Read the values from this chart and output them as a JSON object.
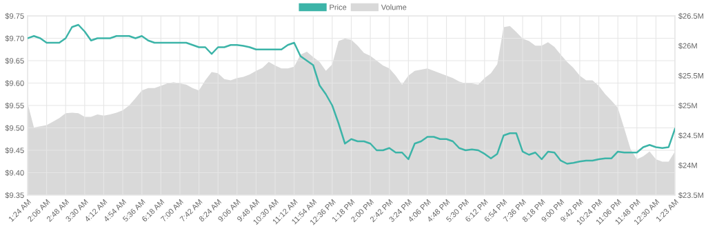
{
  "chart_data": {
    "type": "line",
    "categories": [
      "1:24 AM",
      null,
      null,
      "2:06 AM",
      null,
      null,
      "2:48 AM",
      null,
      null,
      "3:30 AM",
      null,
      null,
      "4:12 AM",
      null,
      null,
      "4:54 AM",
      null,
      null,
      "5:36 AM",
      null,
      null,
      "6:18 AM",
      null,
      null,
      "7:00 AM",
      null,
      null,
      "7:42 AM",
      null,
      null,
      "8:24 AM",
      null,
      null,
      "9:06 AM",
      null,
      null,
      "9:48 AM",
      null,
      null,
      "10:30 AM",
      null,
      null,
      "11:12 AM",
      null,
      null,
      "11:54 AM",
      null,
      null,
      "12:36 PM",
      null,
      null,
      "1:18 PM",
      null,
      null,
      "2:00 PM",
      null,
      null,
      "2:42 PM",
      null,
      null,
      "3:24 PM",
      null,
      null,
      "4:06 PM",
      null,
      null,
      "4:48 PM",
      null,
      null,
      "5:30 PM",
      null,
      null,
      "6:12 PM",
      null,
      null,
      "6:54 PM",
      null,
      null,
      "7:36 PM",
      null,
      null,
      "8:18 PM",
      null,
      null,
      "9:00 PM",
      null,
      null,
      "9:42 PM",
      null,
      null,
      "10:24 PM",
      null,
      null,
      "11:06 PM",
      null,
      null,
      "11:48 PM",
      null,
      null,
      "12:30 AM",
      null,
      null,
      "1:23 AM"
    ],
    "series": [
      {
        "name": "Price",
        "color": "#3cb4a8",
        "values": [
          9.7,
          9.705,
          9.7,
          9.69,
          9.69,
          9.69,
          9.7,
          9.725,
          9.73,
          9.715,
          9.695,
          9.7,
          9.7,
          9.7,
          9.705,
          9.705,
          9.705,
          9.7,
          9.705,
          9.695,
          9.69,
          9.69,
          9.69,
          9.69,
          9.69,
          9.69,
          9.685,
          9.68,
          9.68,
          9.665,
          9.68,
          9.68,
          9.685,
          9.685,
          9.683,
          9.68,
          9.675,
          9.675,
          9.675,
          9.675,
          9.675,
          9.685,
          9.69,
          9.66,
          9.65,
          9.64,
          9.595,
          9.575,
          9.55,
          9.51,
          9.465,
          9.475,
          9.47,
          9.47,
          9.465,
          9.45,
          9.45,
          9.455,
          9.445,
          9.445,
          9.43,
          9.465,
          9.47,
          9.48,
          9.48,
          9.475,
          9.475,
          9.47,
          9.455,
          9.45,
          9.452,
          9.45,
          9.442,
          9.432,
          9.442,
          9.483,
          9.488,
          9.488,
          9.447,
          9.44,
          9.445,
          9.43,
          9.447,
          9.445,
          9.427,
          9.42,
          9.422,
          9.425,
          9.427,
          9.427,
          9.43,
          9.432,
          9.432,
          9.447,
          9.445,
          9.445,
          9.445,
          9.457,
          9.462,
          9.457,
          9.455,
          9.457,
          9.498
        ]
      },
      {
        "name": "Volume",
        "type": "area",
        "axis": "y2",
        "color": "#d9d9d9",
        "values": [
          25.04,
          24.63,
          24.65,
          24.67,
          24.73,
          24.79,
          24.87,
          24.88,
          24.87,
          24.81,
          24.81,
          24.85,
          24.83,
          24.85,
          24.88,
          24.92,
          25.0,
          25.12,
          25.25,
          25.29,
          25.29,
          25.33,
          25.37,
          25.39,
          25.37,
          25.35,
          25.29,
          25.25,
          25.42,
          25.56,
          25.54,
          25.44,
          25.42,
          25.46,
          25.48,
          25.52,
          25.58,
          25.63,
          25.73,
          25.67,
          25.62,
          25.62,
          25.65,
          25.85,
          25.9,
          25.81,
          25.73,
          25.58,
          25.69,
          26.08,
          26.12,
          26.1,
          26.0,
          25.88,
          25.83,
          25.75,
          25.67,
          25.62,
          25.5,
          25.35,
          25.5,
          25.58,
          25.6,
          25.62,
          25.58,
          25.54,
          25.5,
          25.46,
          25.4,
          25.37,
          25.37,
          25.35,
          25.46,
          25.54,
          25.69,
          26.31,
          26.33,
          26.23,
          26.12,
          26.08,
          26.0,
          26.0,
          26.06,
          25.98,
          25.85,
          25.73,
          25.63,
          25.5,
          25.42,
          25.42,
          25.33,
          25.19,
          25.08,
          24.96,
          24.62,
          24.27,
          24.1,
          24.15,
          24.23,
          24.1,
          24.06,
          24.06,
          24.23
        ]
      }
    ],
    "ylim": [
      9.35,
      9.75
    ],
    "yticks": [
      {
        "value": 9.35,
        "label": "$9.35"
      },
      {
        "value": 9.4,
        "label": "$9.40"
      },
      {
        "value": 9.45,
        "label": "$9.45"
      },
      {
        "value": 9.5,
        "label": "$9.50"
      },
      {
        "value": 9.55,
        "label": "$9.55"
      },
      {
        "value": 9.6,
        "label": "$9.60"
      },
      {
        "value": 9.65,
        "label": "$9.65"
      },
      {
        "value": 9.7,
        "label": "$9.70"
      },
      {
        "value": 9.75,
        "label": "$9.75"
      }
    ],
    "y2lim": [
      23.5,
      26.5
    ],
    "y2ticks": [
      {
        "value": 23.5,
        "label": "$23.5M"
      },
      {
        "value": 24,
        "label": "$24M"
      },
      {
        "value": 24.5,
        "label": "$24.5M"
      },
      {
        "value": 25,
        "label": "$25M"
      },
      {
        "value": 25.5,
        "label": "$25.5M"
      },
      {
        "value": 26,
        "label": "$26M"
      },
      {
        "value": 26.5,
        "label": "$26.5M"
      }
    ],
    "grid": true,
    "legend": "top",
    "marker": "none",
    "line_style": "solid"
  }
}
